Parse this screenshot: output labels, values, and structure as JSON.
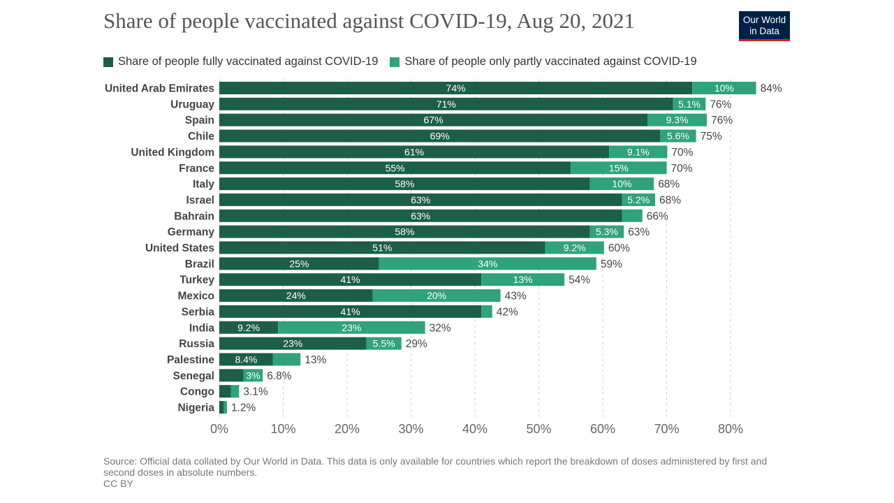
{
  "header": {
    "title": "Share of people vaccinated against COVID-19, Aug 20, 2021",
    "logo_line1": "Our World",
    "logo_line2": "in Data"
  },
  "legend": {
    "items": [
      {
        "label": "Share of people fully vaccinated against COVID-19",
        "color": "#1d5e48"
      },
      {
        "label": "Share of people only partly vaccinated against COVID-19",
        "color": "#2fa37c"
      }
    ]
  },
  "footer": {
    "source": "Source: Official data collated by Our World in Data. This data is only available for countries which report the breakdown of doses administered by first and second doses in absolute numbers.",
    "license": "CC BY"
  },
  "chart_data": {
    "type": "bar",
    "orientation": "horizontal",
    "stacked": true,
    "categories": [
      "United Arab Emirates",
      "Uruguay",
      "Spain",
      "Chile",
      "United Kingdom",
      "France",
      "Italy",
      "Israel",
      "Bahrain",
      "Germany",
      "United States",
      "Brazil",
      "Turkey",
      "Mexico",
      "Serbia",
      "India",
      "Russia",
      "Palestine",
      "Senegal",
      "Congo",
      "Nigeria"
    ],
    "series": [
      {
        "name": "Share of people fully vaccinated against COVID-19",
        "color": "#1d5e48",
        "values": [
          74,
          71,
          67,
          69,
          61,
          55,
          58,
          63,
          63,
          58,
          51,
          25,
          41,
          24,
          41,
          9.2,
          23,
          8.4,
          3.8,
          1.8,
          0.7
        ],
        "labels": [
          "74%",
          "71%",
          "67%",
          "69%",
          "61%",
          "55%",
          "58%",
          "63%",
          "63%",
          "58%",
          "51%",
          "25%",
          "41%",
          "24%",
          "41%",
          "9.2%",
          "23%",
          "8.4%",
          "",
          "",
          ""
        ]
      },
      {
        "name": "Share of people only partly vaccinated against COVID-19",
        "color": "#2fa37c",
        "values": [
          10,
          5.1,
          9.3,
          5.6,
          9.1,
          15,
          10,
          5.2,
          3.2,
          5.3,
          9.2,
          34,
          13,
          20,
          1.7,
          23,
          5.5,
          4.3,
          3,
          1.3,
          0.5
        ],
        "labels": [
          "10%",
          "5.1%",
          "9.3%",
          "5.6%",
          "9.1%",
          "15%",
          "10%",
          "5.2%",
          "",
          "5.3%",
          "9.2%",
          "34%",
          "13%",
          "20%",
          "",
          "23%",
          "5.5%",
          "",
          "3%",
          "",
          ""
        ]
      }
    ],
    "totals": [
      "84%",
      "76%",
      "76%",
      "75%",
      "70%",
      "70%",
      "68%",
      "68%",
      "66%",
      "63%",
      "60%",
      "59%",
      "54%",
      "43%",
      "42%",
      "32%",
      "29%",
      "13%",
      "6.8%",
      "3.1%",
      "1.2%"
    ],
    "xlim": [
      0,
      85
    ],
    "xticks": [
      0,
      10,
      20,
      30,
      40,
      50,
      60,
      70,
      80
    ],
    "xtick_labels": [
      "0%",
      "10%",
      "20%",
      "30%",
      "40%",
      "50%",
      "60%",
      "70%",
      "80%"
    ],
    "grid": true,
    "legend_position": "top"
  }
}
